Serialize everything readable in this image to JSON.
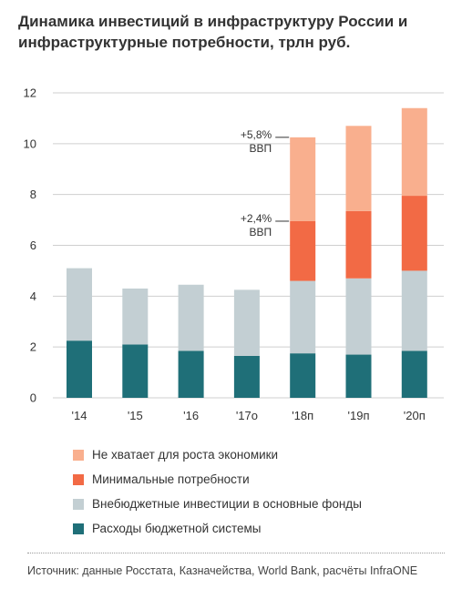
{
  "title": "Динамика инвестиций в инфраструктуру России и инфраструктурные потребности, трлн руб.",
  "source": "Источник: данные Росстата, Казначейства, World Bank, расчёты InfraONE",
  "chart_data": {
    "type": "bar",
    "stacked": true,
    "categories": [
      "'14",
      "'15",
      "'16",
      "'17о",
      "'18п",
      "'19п",
      "'20п"
    ],
    "series": [
      {
        "name": "Расходы бюджетной системы",
        "color": "#1f6f78",
        "values": [
          2.25,
          2.1,
          1.85,
          1.65,
          1.75,
          1.7,
          1.85
        ]
      },
      {
        "name": "Внебюджетные инвестиции в основные фонды",
        "color": "#c3cfd3",
        "values": [
          2.85,
          2.2,
          2.6,
          2.6,
          2.85,
          3.0,
          3.15
        ]
      },
      {
        "name": "Минимальные потребности",
        "color": "#f26a45",
        "values": [
          0,
          0,
          0,
          0,
          2.35,
          2.65,
          2.95
        ]
      },
      {
        "name": "Не хватает для роста экономики",
        "color": "#f9af8e",
        "values": [
          0,
          0,
          0,
          0,
          3.3,
          3.35,
          3.45
        ]
      }
    ],
    "legend_order": [
      3,
      2,
      1,
      0
    ],
    "ylim": [
      0,
      12
    ],
    "yticks": [
      0,
      2,
      4,
      6,
      8,
      10,
      12
    ],
    "grid": true,
    "legend_position": "bottom",
    "annotations": [
      {
        "lines": [
          "+5,8%",
          "ВВП"
        ],
        "category_index": 4,
        "y": 10.25
      },
      {
        "lines": [
          "+2,4%",
          "ВВП"
        ],
        "category_index": 4,
        "y": 6.95
      }
    ]
  }
}
